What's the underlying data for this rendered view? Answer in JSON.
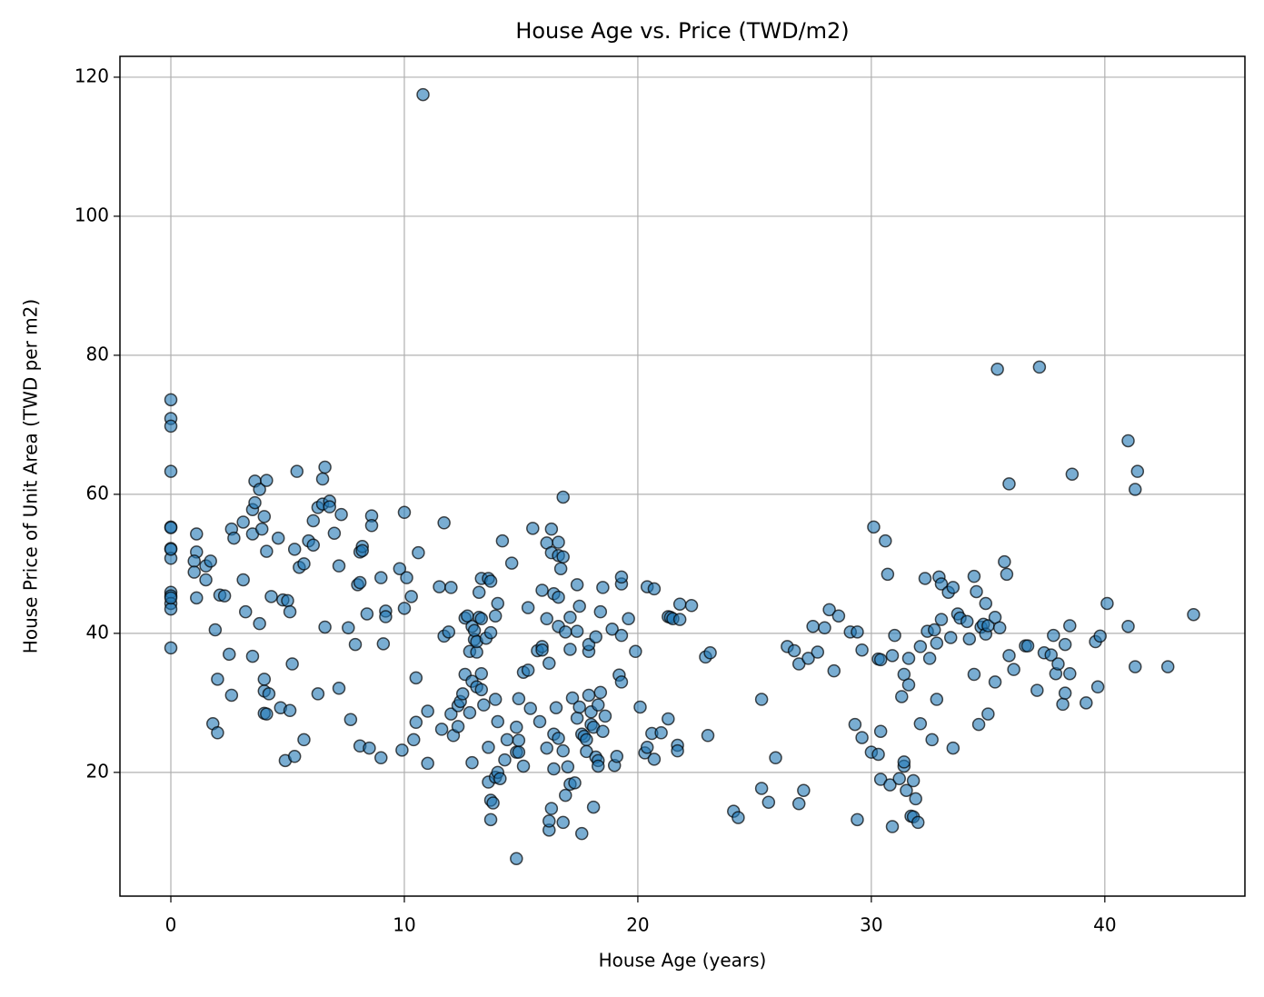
{
  "chart_data": {
    "type": "scatter",
    "title": "House Age vs. Price (TWD/m2)",
    "xlabel": "House Age (years)",
    "ylabel": "House Price of Unit Area (TWD per m2)",
    "color": "#1f77b4",
    "edgecolor": "#000000",
    "grid": true,
    "xlim": [
      -2.18,
      46.0
    ],
    "ylim": [
      2.2,
      123.0
    ],
    "xticks": [
      0,
      10,
      20,
      30,
      40
    ],
    "yticks": [
      20,
      40,
      60,
      80,
      100,
      120
    ],
    "x": [
      0,
      0,
      0,
      0,
      0,
      0,
      0,
      0,
      0,
      0,
      0,
      0,
      0,
      0,
      0,
      1.1,
      1.1,
      1.0,
      1.0,
      1.1,
      1.5,
      1.5,
      1.7,
      1.9,
      1.8,
      2.0,
      2.0,
      2.1,
      2.3,
      2.5,
      2.6,
      2.6,
      2.7,
      3.1,
      3.1,
      3.2,
      3.5,
      3.5,
      3.6,
      3.6,
      3.5,
      3.8,
      3.9,
      3.8,
      4.0,
      4.0,
      4.0,
      4.0,
      4.1,
      4.2,
      4.1,
      4.1,
      4.3,
      4.6,
      4.7,
      4.8,
      4.9,
      5.0,
      5.1,
      5.2,
      5.1,
      5.3,
      5.3,
      5.4,
      5.5,
      5.7,
      5.7,
      5.9,
      6.1,
      6.1,
      6.3,
      6.3,
      6.5,
      6.5,
      6.6,
      6.6,
      6.8,
      6.8,
      7.0,
      7.2,
      7.3,
      7.2,
      7.6,
      7.7,
      7.9,
      8.0,
      8.1,
      8.1,
      8.1,
      8.2,
      8.2,
      8.4,
      8.5,
      8.6,
      8.6,
      9.0,
      9.0,
      9.1,
      9.2,
      9.2,
      9.8,
      10.0,
      10.0,
      9.9,
      10.1,
      10.3,
      10.4,
      10.5,
      10.5,
      10.6,
      10.8,
      11.0,
      11.0,
      11.5,
      11.6,
      11.7,
      11.7,
      11.9,
      12.0,
      12.0,
      12.1,
      12.3,
      12.3,
      12.4,
      12.5,
      12.6,
      12.6,
      12.7,
      12.8,
      12.8,
      12.9,
      12.9,
      12.9,
      13.0,
      13.0,
      13.1,
      13.1,
      13.1,
      13.2,
      13.2,
      13.3,
      13.3,
      13.3,
      13.3,
      13.4,
      13.5,
      13.6,
      13.6,
      13.6,
      13.7,
      13.7,
      13.7,
      13.7,
      13.8,
      13.9,
      13.9,
      13.9,
      14.0,
      14.0,
      14.0,
      14.1,
      14.2,
      14.3,
      14.4,
      14.6,
      14.8,
      14.8,
      14.9,
      14.9,
      14.9,
      14.8,
      15.1,
      15.1,
      15.3,
      15.3,
      15.4,
      15.5,
      15.7,
      15.8,
      15.9,
      15.9,
      15.9,
      16.1,
      16.1,
      16.1,
      16.2,
      16.2,
      16.2,
      16.3,
      16.3,
      16.3,
      16.4,
      16.4,
      16.4,
      16.5,
      16.6,
      16.6,
      16.6,
      16.6,
      16.6,
      16.7,
      16.8,
      16.8,
      16.8,
      16.8,
      16.9,
      16.9,
      17.0,
      17.1,
      17.1,
      17.1,
      17.2,
      17.3,
      17.4,
      17.4,
      17.4,
      17.5,
      17.5,
      17.6,
      17.6,
      17.7,
      17.8,
      17.8,
      17.9,
      17.9,
      17.9,
      18.0,
      18.0,
      18.1,
      18.1,
      18.2,
      18.2,
      18.3,
      18.3,
      18.3,
      18.4,
      18.4,
      18.5,
      18.5,
      18.6,
      18.9,
      19.0,
      19.1,
      19.2,
      19.3,
      19.3,
      19.3,
      19.3,
      19.6,
      19.9,
      20.1,
      20.3,
      20.4,
      20.4,
      20.6,
      20.7,
      20.7,
      21.0,
      21.3,
      21.3,
      21.4,
      21.5,
      21.7,
      21.7,
      21.8,
      21.8,
      22.3,
      22.9,
      23.0,
      23.1,
      24.1,
      24.3,
      25.3,
      25.3,
      25.6,
      25.9,
      26.4,
      26.7,
      26.9,
      26.9,
      27.1,
      27.3,
      27.5,
      27.7,
      28.0,
      28.2,
      28.4,
      28.6,
      29.1,
      29.3,
      29.4,
      29.4,
      29.6,
      29.6,
      30.0,
      30.1,
      30.3,
      30.3,
      30.4,
      30.4,
      30.4,
      30.6,
      30.7,
      30.8,
      30.9,
      30.9,
      31.0,
      31.2,
      31.3,
      31.4,
      31.4,
      31.4,
      31.5,
      31.6,
      31.6,
      31.7,
      31.8,
      31.8,
      31.9,
      32.0,
      32.1,
      32.1,
      32.3,
      32.4,
      32.5,
      32.6,
      32.7,
      32.8,
      32.8,
      32.9,
      33.0,
      33.0,
      33.3,
      33.4,
      33.5,
      33.5,
      33.7,
      33.8,
      34.1,
      34.2,
      34.4,
      34.4,
      34.5,
      34.6,
      34.7,
      34.8,
      34.9,
      34.9,
      35.0,
      35.0,
      35.3,
      35.3,
      35.4,
      35.5,
      35.7,
      35.8,
      35.9,
      35.9,
      36.1,
      36.6,
      36.7,
      37.1,
      37.2,
      37.4,
      37.7,
      37.8,
      37.9,
      38.0,
      38.2,
      38.3,
      38.3,
      38.5,
      38.5,
      38.6,
      39.2,
      39.6,
      39.7,
      39.8,
      40.1,
      41.0,
      41.0,
      41.3,
      41.3,
      41.4,
      42.7,
      43.8
    ],
    "values": [
      73.6,
      70.9,
      69.8,
      63.3,
      55.3,
      52.2,
      50.8,
      45.9,
      45.4,
      44.3,
      43.5,
      37.9,
      45.1,
      52.1,
      55.2,
      54.3,
      51.7,
      50.4,
      48.8,
      45.1,
      49.7,
      47.7,
      50.4,
      40.5,
      27.0,
      25.7,
      33.4,
      45.5,
      45.4,
      37.0,
      31.1,
      55.0,
      53.7,
      56.0,
      47.7,
      43.1,
      57.8,
      54.3,
      58.8,
      61.9,
      36.7,
      41.4,
      55.0,
      60.7,
      56.8,
      31.7,
      33.4,
      28.5,
      28.4,
      31.3,
      62.0,
      51.8,
      45.3,
      53.7,
      29.3,
      44.8,
      21.7,
      44.7,
      43.1,
      35.6,
      28.9,
      52.1,
      22.3,
      63.3,
      49.5,
      50.0,
      24.7,
      53.3,
      56.2,
      52.7,
      31.3,
      58.1,
      58.6,
      62.2,
      63.9,
      40.9,
      59.0,
      58.2,
      54.4,
      49.7,
      57.1,
      32.1,
      40.8,
      27.6,
      38.4,
      47.0,
      47.3,
      51.7,
      23.8,
      52.5,
      51.9,
      42.8,
      23.5,
      56.9,
      55.5,
      48.0,
      22.1,
      38.5,
      43.2,
      42.4,
      49.3,
      57.4,
      43.6,
      23.2,
      48.0,
      45.3,
      24.7,
      33.6,
      27.2,
      51.6,
      117.5,
      28.8,
      21.3,
      46.7,
      26.2,
      39.6,
      55.9,
      40.2,
      46.6,
      28.4,
      25.3,
      26.6,
      29.6,
      30.2,
      31.3,
      34.1,
      42.2,
      42.5,
      28.6,
      37.4,
      41.0,
      21.4,
      33.1,
      39.1,
      40.4,
      37.3,
      32.3,
      38.8,
      42.3,
      45.9,
      47.9,
      42.1,
      34.2,
      31.9,
      29.7,
      39.3,
      18.6,
      23.6,
      47.9,
      40.1,
      47.5,
      13.2,
      16.0,
      15.6,
      19.3,
      30.5,
      42.5,
      27.3,
      44.3,
      20.0,
      19.1,
      53.3,
      21.8,
      24.7,
      50.1,
      26.5,
      22.9,
      30.6,
      24.6,
      22.9,
      7.6,
      34.4,
      20.9,
      43.7,
      34.7,
      29.2,
      55.1,
      37.5,
      27.3,
      46.2,
      38.1,
      37.6,
      53.0,
      42.1,
      23.5,
      11.7,
      35.7,
      13.0,
      51.6,
      55.0,
      14.8,
      25.5,
      45.7,
      20.5,
      29.3,
      51.2,
      24.9,
      41.0,
      53.1,
      45.2,
      49.3,
      59.6,
      23.1,
      51.0,
      12.8,
      40.2,
      16.7,
      20.8,
      37.7,
      18.3,
      42.3,
      30.7,
      18.5,
      40.3,
      47.0,
      27.8,
      29.4,
      43.9,
      11.2,
      25.5,
      25.2,
      24.7,
      23.0,
      31.1,
      37.4,
      38.4,
      26.9,
      28.7,
      26.5,
      15.0,
      22.2,
      39.5,
      21.7,
      20.9,
      29.7,
      31.5,
      43.1,
      46.6,
      25.9,
      28.1,
      40.6,
      21.0,
      22.3,
      34.0,
      33.0,
      47.1,
      48.1,
      39.7,
      42.1,
      37.4,
      29.4,
      22.8,
      23.6,
      46.7,
      25.6,
      21.9,
      46.4,
      25.7,
      42.4,
      27.7,
      42.3,
      42.1,
      23.9,
      23.1,
      42.0,
      44.2,
      44.0,
      36.6,
      25.3,
      37.2,
      14.4,
      13.5,
      17.7,
      30.5,
      15.7,
      22.1,
      38.1,
      37.5,
      15.5,
      35.6,
      17.4,
      36.4,
      41.0,
      37.3,
      40.8,
      43.4,
      34.6,
      42.5,
      40.2,
      26.9,
      40.2,
      13.2,
      25.0,
      37.6,
      22.9,
      55.3,
      36.3,
      22.6,
      36.2,
      19.0,
      25.9,
      53.3,
      48.5,
      18.2,
      36.8,
      12.2,
      39.7,
      19.1,
      30.9,
      20.9,
      21.5,
      34.1,
      17.4,
      32.6,
      36.4,
      13.7,
      18.8,
      13.6,
      16.2,
      12.8,
      38.1,
      27.0,
      47.9,
      40.3,
      36.4,
      24.7,
      40.5,
      30.5,
      38.6,
      48.1,
      47.1,
      42.0,
      45.9,
      39.4,
      46.6,
      23.5,
      42.8,
      42.2,
      41.7,
      39.2,
      48.2,
      34.1,
      46.0,
      26.9,
      40.9,
      41.3,
      44.3,
      39.9,
      41.1,
      28.4,
      42.3,
      33.0,
      78.0,
      40.8,
      50.3,
      48.5,
      61.5,
      36.8,
      34.8,
      38.2,
      38.2,
      31.8,
      78.3,
      37.2,
      36.9,
      39.7,
      34.2,
      35.6,
      29.8,
      31.4,
      38.4,
      34.2,
      41.1,
      62.9,
      30.0,
      38.8,
      32.3,
      39.6,
      44.3,
      67.7,
      41.0,
      35.2,
      60.7,
      63.3,
      35.2,
      42.7
    ]
  }
}
